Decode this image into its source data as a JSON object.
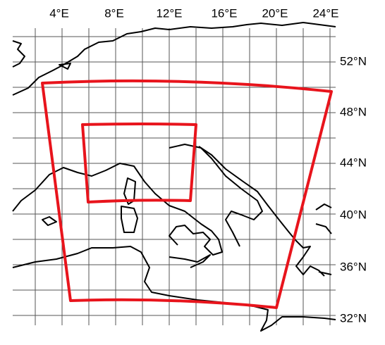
{
  "map": {
    "lon_labels": [
      "4°E",
      "8°E",
      "12°E",
      "16°E",
      "20°E",
      "24°E"
    ],
    "lat_labels": [
      "52°N",
      "48°N",
      "44°N",
      "40°N",
      "36°N",
      "32°N"
    ]
  }
}
